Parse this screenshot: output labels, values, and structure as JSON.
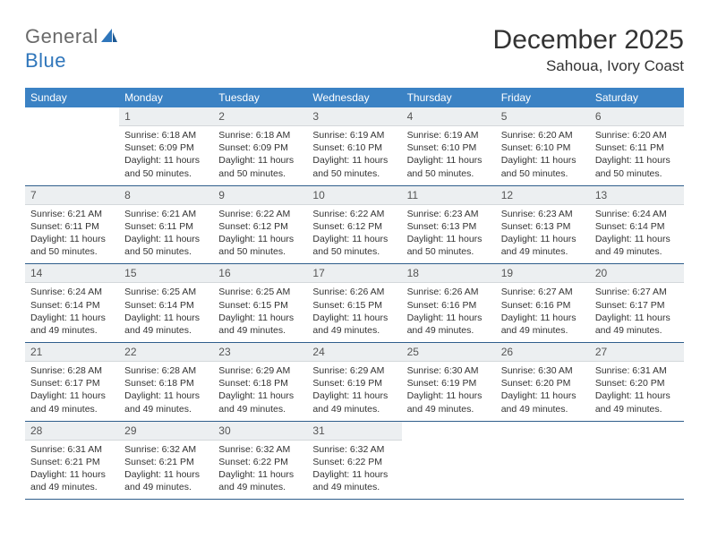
{
  "logo": {
    "word1": "General",
    "word2": "Blue"
  },
  "title": "December 2025",
  "location": "Sahoua, Ivory Coast",
  "colors": {
    "header_bg": "#3b82c4",
    "header_text": "#ffffff",
    "daynum_bg": "#eceff1",
    "rule": "#2f5e8c",
    "logo_gray": "#6a6a6a",
    "logo_blue": "#2f76bb"
  },
  "day_labels": [
    "Sunday",
    "Monday",
    "Tuesday",
    "Wednesday",
    "Thursday",
    "Friday",
    "Saturday"
  ],
  "weeks": [
    [
      null,
      {
        "n": "1",
        "sunrise": "Sunrise: 6:18 AM",
        "sunset": "Sunset: 6:09 PM",
        "daylight": "Daylight: 11 hours and 50 minutes."
      },
      {
        "n": "2",
        "sunrise": "Sunrise: 6:18 AM",
        "sunset": "Sunset: 6:09 PM",
        "daylight": "Daylight: 11 hours and 50 minutes."
      },
      {
        "n": "3",
        "sunrise": "Sunrise: 6:19 AM",
        "sunset": "Sunset: 6:10 PM",
        "daylight": "Daylight: 11 hours and 50 minutes."
      },
      {
        "n": "4",
        "sunrise": "Sunrise: 6:19 AM",
        "sunset": "Sunset: 6:10 PM",
        "daylight": "Daylight: 11 hours and 50 minutes."
      },
      {
        "n": "5",
        "sunrise": "Sunrise: 6:20 AM",
        "sunset": "Sunset: 6:10 PM",
        "daylight": "Daylight: 11 hours and 50 minutes."
      },
      {
        "n": "6",
        "sunrise": "Sunrise: 6:20 AM",
        "sunset": "Sunset: 6:11 PM",
        "daylight": "Daylight: 11 hours and 50 minutes."
      }
    ],
    [
      {
        "n": "7",
        "sunrise": "Sunrise: 6:21 AM",
        "sunset": "Sunset: 6:11 PM",
        "daylight": "Daylight: 11 hours and 50 minutes."
      },
      {
        "n": "8",
        "sunrise": "Sunrise: 6:21 AM",
        "sunset": "Sunset: 6:11 PM",
        "daylight": "Daylight: 11 hours and 50 minutes."
      },
      {
        "n": "9",
        "sunrise": "Sunrise: 6:22 AM",
        "sunset": "Sunset: 6:12 PM",
        "daylight": "Daylight: 11 hours and 50 minutes."
      },
      {
        "n": "10",
        "sunrise": "Sunrise: 6:22 AM",
        "sunset": "Sunset: 6:12 PM",
        "daylight": "Daylight: 11 hours and 50 minutes."
      },
      {
        "n": "11",
        "sunrise": "Sunrise: 6:23 AM",
        "sunset": "Sunset: 6:13 PM",
        "daylight": "Daylight: 11 hours and 50 minutes."
      },
      {
        "n": "12",
        "sunrise": "Sunrise: 6:23 AM",
        "sunset": "Sunset: 6:13 PM",
        "daylight": "Daylight: 11 hours and 49 minutes."
      },
      {
        "n": "13",
        "sunrise": "Sunrise: 6:24 AM",
        "sunset": "Sunset: 6:14 PM",
        "daylight": "Daylight: 11 hours and 49 minutes."
      }
    ],
    [
      {
        "n": "14",
        "sunrise": "Sunrise: 6:24 AM",
        "sunset": "Sunset: 6:14 PM",
        "daylight": "Daylight: 11 hours and 49 minutes."
      },
      {
        "n": "15",
        "sunrise": "Sunrise: 6:25 AM",
        "sunset": "Sunset: 6:14 PM",
        "daylight": "Daylight: 11 hours and 49 minutes."
      },
      {
        "n": "16",
        "sunrise": "Sunrise: 6:25 AM",
        "sunset": "Sunset: 6:15 PM",
        "daylight": "Daylight: 11 hours and 49 minutes."
      },
      {
        "n": "17",
        "sunrise": "Sunrise: 6:26 AM",
        "sunset": "Sunset: 6:15 PM",
        "daylight": "Daylight: 11 hours and 49 minutes."
      },
      {
        "n": "18",
        "sunrise": "Sunrise: 6:26 AM",
        "sunset": "Sunset: 6:16 PM",
        "daylight": "Daylight: 11 hours and 49 minutes."
      },
      {
        "n": "19",
        "sunrise": "Sunrise: 6:27 AM",
        "sunset": "Sunset: 6:16 PM",
        "daylight": "Daylight: 11 hours and 49 minutes."
      },
      {
        "n": "20",
        "sunrise": "Sunrise: 6:27 AM",
        "sunset": "Sunset: 6:17 PM",
        "daylight": "Daylight: 11 hours and 49 minutes."
      }
    ],
    [
      {
        "n": "21",
        "sunrise": "Sunrise: 6:28 AM",
        "sunset": "Sunset: 6:17 PM",
        "daylight": "Daylight: 11 hours and 49 minutes."
      },
      {
        "n": "22",
        "sunrise": "Sunrise: 6:28 AM",
        "sunset": "Sunset: 6:18 PM",
        "daylight": "Daylight: 11 hours and 49 minutes."
      },
      {
        "n": "23",
        "sunrise": "Sunrise: 6:29 AM",
        "sunset": "Sunset: 6:18 PM",
        "daylight": "Daylight: 11 hours and 49 minutes."
      },
      {
        "n": "24",
        "sunrise": "Sunrise: 6:29 AM",
        "sunset": "Sunset: 6:19 PM",
        "daylight": "Daylight: 11 hours and 49 minutes."
      },
      {
        "n": "25",
        "sunrise": "Sunrise: 6:30 AM",
        "sunset": "Sunset: 6:19 PM",
        "daylight": "Daylight: 11 hours and 49 minutes."
      },
      {
        "n": "26",
        "sunrise": "Sunrise: 6:30 AM",
        "sunset": "Sunset: 6:20 PM",
        "daylight": "Daylight: 11 hours and 49 minutes."
      },
      {
        "n": "27",
        "sunrise": "Sunrise: 6:31 AM",
        "sunset": "Sunset: 6:20 PM",
        "daylight": "Daylight: 11 hours and 49 minutes."
      }
    ],
    [
      {
        "n": "28",
        "sunrise": "Sunrise: 6:31 AM",
        "sunset": "Sunset: 6:21 PM",
        "daylight": "Daylight: 11 hours and 49 minutes."
      },
      {
        "n": "29",
        "sunrise": "Sunrise: 6:32 AM",
        "sunset": "Sunset: 6:21 PM",
        "daylight": "Daylight: 11 hours and 49 minutes."
      },
      {
        "n": "30",
        "sunrise": "Sunrise: 6:32 AM",
        "sunset": "Sunset: 6:22 PM",
        "daylight": "Daylight: 11 hours and 49 minutes."
      },
      {
        "n": "31",
        "sunrise": "Sunrise: 6:32 AM",
        "sunset": "Sunset: 6:22 PM",
        "daylight": "Daylight: 11 hours and 49 minutes."
      },
      null,
      null,
      null
    ]
  ]
}
